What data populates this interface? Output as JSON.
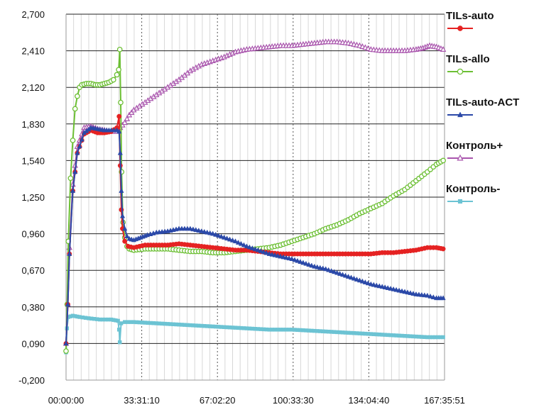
{
  "chart_data": {
    "type": "line",
    "x_ticks": [
      "00:00:00",
      "33:31:10",
      "67:02:20",
      "100:33:30",
      "134:04:40",
      "167:35:51"
    ],
    "y_ticks": [
      "2,700",
      "2,410",
      "2,120",
      "1,830",
      "1,540",
      "1,250",
      "0,960",
      "0,670",
      "0,380",
      "0,090",
      "-0,200"
    ],
    "ylim": [
      -0.2,
      2.7
    ],
    "xlim_hours": [
      0,
      167.6
    ],
    "grid": {
      "vertical_dotted": true,
      "horizontal_solid": true
    },
    "legend_position": "right",
    "colors": {
      "grid_solid": "#222222",
      "grid_dotted": "#555555",
      "minor_grid": "#d8d8d8",
      "axis": "#999999"
    },
    "series": [
      {
        "name": "TILs-auto",
        "color": "#e52222",
        "marker": "circle-filled",
        "points": [
          [
            0,
            0.09
          ],
          [
            0.8,
            0.4
          ],
          [
            1.5,
            0.8
          ],
          [
            3,
            1.3
          ],
          [
            5,
            1.6
          ],
          [
            8,
            1.75
          ],
          [
            11,
            1.78
          ],
          [
            14,
            1.76
          ],
          [
            17,
            1.76
          ],
          [
            20,
            1.77
          ],
          [
            22.5,
            1.8
          ],
          [
            23.5,
            1.89
          ],
          [
            24,
            1.5
          ],
          [
            24.5,
            1.15
          ],
          [
            25,
            1.0
          ],
          [
            26,
            0.9
          ],
          [
            27.5,
            0.86
          ],
          [
            30,
            0.85
          ],
          [
            35,
            0.87
          ],
          [
            40,
            0.87
          ],
          [
            45,
            0.87
          ],
          [
            50,
            0.88
          ],
          [
            55,
            0.87
          ],
          [
            60,
            0.86
          ],
          [
            65,
            0.85
          ],
          [
            70,
            0.84
          ],
          [
            75,
            0.83
          ],
          [
            80,
            0.83
          ],
          [
            85,
            0.82
          ],
          [
            90,
            0.81
          ],
          [
            95,
            0.8
          ],
          [
            100,
            0.8
          ],
          [
            105,
            0.8
          ],
          [
            110,
            0.8
          ],
          [
            115,
            0.8
          ],
          [
            120,
            0.8
          ],
          [
            125,
            0.8
          ],
          [
            130,
            0.8
          ],
          [
            135,
            0.8
          ],
          [
            140,
            0.81
          ],
          [
            145,
            0.81
          ],
          [
            150,
            0.82
          ],
          [
            155,
            0.83
          ],
          [
            160,
            0.85
          ],
          [
            164,
            0.85
          ],
          [
            167,
            0.84
          ]
        ]
      },
      {
        "name": "TILs-allo",
        "color": "#6cbf34",
        "marker": "circle-open",
        "points": [
          [
            0,
            0.03
          ],
          [
            0.5,
            0.4
          ],
          [
            1,
            0.9
          ],
          [
            2,
            1.4
          ],
          [
            3,
            1.7
          ],
          [
            4,
            1.95
          ],
          [
            5,
            2.05
          ],
          [
            6,
            2.12
          ],
          [
            7,
            2.14
          ],
          [
            9,
            2.15
          ],
          [
            11,
            2.15
          ],
          [
            13,
            2.14
          ],
          [
            15,
            2.14
          ],
          [
            17,
            2.15
          ],
          [
            19,
            2.16
          ],
          [
            21,
            2.18
          ],
          [
            22.5,
            2.22
          ],
          [
            23.3,
            2.26
          ],
          [
            23.8,
            2.42
          ],
          [
            24.2,
            2.0
          ],
          [
            24.6,
            1.45
          ],
          [
            25.2,
            1.05
          ],
          [
            26,
            0.93
          ],
          [
            27,
            0.86
          ],
          [
            28,
            0.84
          ],
          [
            30,
            0.83
          ],
          [
            35,
            0.84
          ],
          [
            40,
            0.84
          ],
          [
            45,
            0.84
          ],
          [
            50,
            0.83
          ],
          [
            55,
            0.82
          ],
          [
            60,
            0.82
          ],
          [
            65,
            0.81
          ],
          [
            70,
            0.81
          ],
          [
            75,
            0.82
          ],
          [
            80,
            0.83
          ],
          [
            85,
            0.84
          ],
          [
            90,
            0.85
          ],
          [
            95,
            0.87
          ],
          [
            100,
            0.9
          ],
          [
            105,
            0.93
          ],
          [
            110,
            0.96
          ],
          [
            115,
            1.0
          ],
          [
            120,
            1.03
          ],
          [
            125,
            1.07
          ],
          [
            130,
            1.12
          ],
          [
            135,
            1.16
          ],
          [
            140,
            1.2
          ],
          [
            145,
            1.26
          ],
          [
            150,
            1.31
          ],
          [
            155,
            1.38
          ],
          [
            160,
            1.45
          ],
          [
            164,
            1.51
          ],
          [
            167,
            1.54
          ]
        ]
      },
      {
        "name": "TILs-auto-ACT",
        "color": "#2b49a8",
        "marker": "triangle-filled",
        "points": [
          [
            0,
            0.09
          ],
          [
            0.8,
            0.4
          ],
          [
            1.5,
            0.8
          ],
          [
            3,
            1.3
          ],
          [
            5,
            1.6
          ],
          [
            8,
            1.76
          ],
          [
            11,
            1.8
          ],
          [
            14,
            1.79
          ],
          [
            17,
            1.78
          ],
          [
            20,
            1.78
          ],
          [
            22.5,
            1.78
          ],
          [
            23.5,
            1.77
          ],
          [
            24,
            1.6
          ],
          [
            24.5,
            1.3
          ],
          [
            25,
            1.1
          ],
          [
            26,
            1.0
          ],
          [
            27,
            0.94
          ],
          [
            28,
            0.92
          ],
          [
            30,
            0.91
          ],
          [
            33,
            0.93
          ],
          [
            36,
            0.95
          ],
          [
            40,
            0.97
          ],
          [
            45,
            0.98
          ],
          [
            50,
            1.0
          ],
          [
            55,
            1.0
          ],
          [
            60,
            0.98
          ],
          [
            65,
            0.96
          ],
          [
            70,
            0.93
          ],
          [
            75,
            0.9
          ],
          [
            80,
            0.86
          ],
          [
            85,
            0.83
          ],
          [
            90,
            0.8
          ],
          [
            95,
            0.78
          ],
          [
            100,
            0.76
          ],
          [
            105,
            0.73
          ],
          [
            110,
            0.7
          ],
          [
            115,
            0.68
          ],
          [
            120,
            0.65
          ],
          [
            125,
            0.62
          ],
          [
            130,
            0.59
          ],
          [
            135,
            0.56
          ],
          [
            140,
            0.54
          ],
          [
            145,
            0.52
          ],
          [
            150,
            0.5
          ],
          [
            155,
            0.48
          ],
          [
            160,
            0.47
          ],
          [
            164,
            0.45
          ],
          [
            167,
            0.45
          ]
        ]
      },
      {
        "name": "Контроль+",
        "color": "#a955ad",
        "marker": "triangle-open",
        "points": [
          [
            0,
            0.09
          ],
          [
            0.8,
            0.4
          ],
          [
            1.5,
            0.85
          ],
          [
            3,
            1.35
          ],
          [
            5,
            1.65
          ],
          [
            8,
            1.8
          ],
          [
            11,
            1.81
          ],
          [
            14,
            1.79
          ],
          [
            17,
            1.78
          ],
          [
            20,
            1.77
          ],
          [
            22.5,
            1.77
          ],
          [
            24,
            1.8
          ],
          [
            26,
            1.84
          ],
          [
            28,
            1.9
          ],
          [
            30,
            1.94
          ],
          [
            35,
            2.0
          ],
          [
            40,
            2.06
          ],
          [
            45,
            2.12
          ],
          [
            50,
            2.18
          ],
          [
            55,
            2.25
          ],
          [
            60,
            2.3
          ],
          [
            65,
            2.33
          ],
          [
            70,
            2.36
          ],
          [
            75,
            2.4
          ],
          [
            80,
            2.42
          ],
          [
            85,
            2.43
          ],
          [
            90,
            2.44
          ],
          [
            95,
            2.45
          ],
          [
            100,
            2.45
          ],
          [
            105,
            2.46
          ],
          [
            110,
            2.47
          ],
          [
            115,
            2.48
          ],
          [
            120,
            2.48
          ],
          [
            125,
            2.47
          ],
          [
            130,
            2.45
          ],
          [
            135,
            2.42
          ],
          [
            140,
            2.41
          ],
          [
            145,
            2.41
          ],
          [
            150,
            2.41
          ],
          [
            155,
            2.42
          ],
          [
            158,
            2.43
          ],
          [
            161,
            2.45
          ],
          [
            164,
            2.44
          ],
          [
            167,
            2.42
          ]
        ]
      },
      {
        "name": "Контроль-",
        "color": "#6cc3d3",
        "marker": "square-filled",
        "points": [
          [
            0,
            0.02
          ],
          [
            0.4,
            0.21
          ],
          [
            1,
            0.3
          ],
          [
            3,
            0.31
          ],
          [
            6,
            0.3
          ],
          [
            10,
            0.29
          ],
          [
            15,
            0.28
          ],
          [
            20,
            0.28
          ],
          [
            23,
            0.27
          ],
          [
            23.5,
            0.2
          ],
          [
            23.8,
            0.1
          ],
          [
            24.4,
            0.25
          ],
          [
            26,
            0.26
          ],
          [
            30,
            0.26
          ],
          [
            40,
            0.25
          ],
          [
            50,
            0.24
          ],
          [
            60,
            0.23
          ],
          [
            70,
            0.22
          ],
          [
            80,
            0.21
          ],
          [
            90,
            0.2
          ],
          [
            100,
            0.2
          ],
          [
            110,
            0.19
          ],
          [
            120,
            0.18
          ],
          [
            130,
            0.17
          ],
          [
            140,
            0.16
          ],
          [
            150,
            0.15
          ],
          [
            160,
            0.14
          ],
          [
            167,
            0.14
          ]
        ]
      }
    ]
  }
}
